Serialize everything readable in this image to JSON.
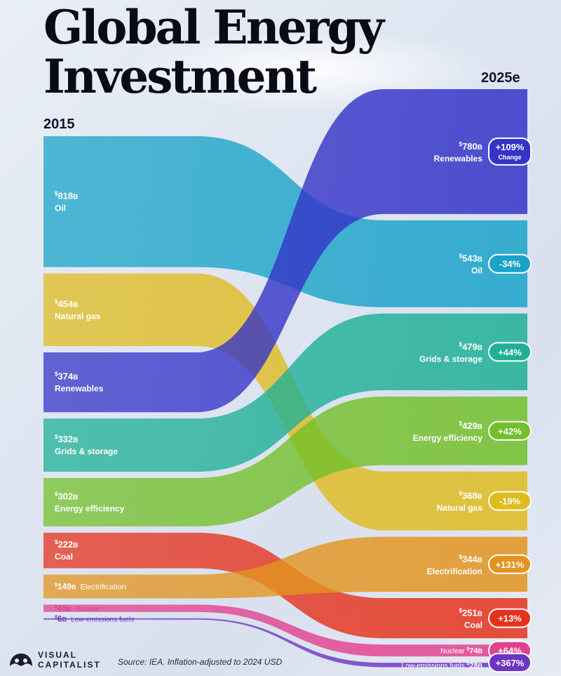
{
  "title": "Global Energy Investment",
  "source": "Source: IEA. Inflation-adjusted to 2024 USD",
  "brand": {
    "line1": "VISUAL",
    "line2": "CAPITALIST"
  },
  "chart_data": {
    "type": "sankey",
    "unit": "$B",
    "x": [
      "2015",
      "2025e"
    ],
    "change_note": "Change",
    "series": [
      {
        "name": "Oil",
        "v2015": 818,
        "v2025": 543,
        "change": "-34%",
        "color": "#1aa3c9"
      },
      {
        "name": "Natural gas",
        "v2015": 454,
        "v2025": 368,
        "change": "-19%",
        "color": "#dfbb1f"
      },
      {
        "name": "Renewables",
        "v2015": 374,
        "v2025": 780,
        "change": "+109%",
        "color": "#3434c8"
      },
      {
        "name": "Grids & storage",
        "v2015": 332,
        "v2025": 479,
        "change": "+44%",
        "color": "#1fb096"
      },
      {
        "name": "Energy efficiency",
        "v2015": 302,
        "v2025": 429,
        "change": "+42%",
        "color": "#73c02a"
      },
      {
        "name": "Coal",
        "v2015": 222,
        "v2025": 251,
        "change": "+13%",
        "color": "#e5321c"
      },
      {
        "name": "Electrification",
        "v2015": 149,
        "v2025": 344,
        "change": "+131%",
        "color": "#e3941f"
      },
      {
        "name": "Nuclear",
        "v2015": 45,
        "v2025": 74,
        "change": "+64%",
        "color": "#e3408f"
      },
      {
        "name": "Low-emissions fuels",
        "v2015": 6,
        "v2025": 28,
        "change": "+367%",
        "color": "#6d35c4"
      }
    ],
    "order_2025": [
      "Renewables",
      "Oil",
      "Grids & storage",
      "Energy efficiency",
      "Natural gas",
      "Electrification",
      "Coal",
      "Nuclear",
      "Low-emissions fuels"
    ]
  }
}
